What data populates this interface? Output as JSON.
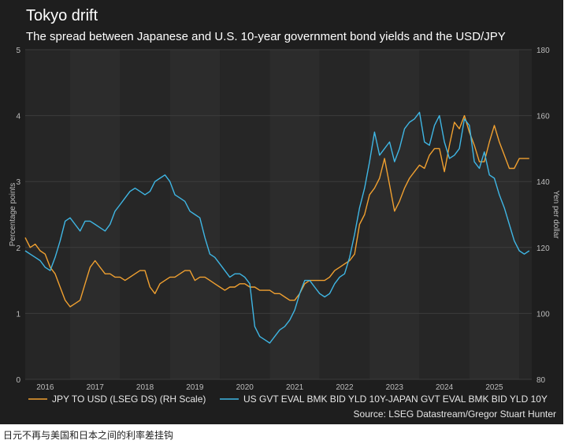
{
  "caption": "日元不再与美国和日本之间的利率差挂钩",
  "chart_data": {
    "type": "line",
    "title": "Tokyo drift",
    "subtitle": "The spread between Japanese and U.S. 10-year government bond yields and the USD/JPY",
    "ylabel_left": "Percentage points",
    "ylabel_right": "Yen per dollar",
    "ylim_left": [
      0,
      5
    ],
    "ylim_right": [
      80,
      180
    ],
    "yticks_left": [
      "0",
      "1",
      "2",
      "3",
      "4",
      "5"
    ],
    "yticks_right": [
      "80",
      "100",
      "120",
      "140",
      "160",
      "180"
    ],
    "xlim": [
      2015.6,
      2025.75
    ],
    "xticks": [
      {
        "label": "2016",
        "x": 2016.0
      },
      {
        "label": "2017",
        "x": 2017.0
      },
      {
        "label": "2018",
        "x": 2018.0
      },
      {
        "label": "2019",
        "x": 2019.0
      },
      {
        "label": "2020",
        "x": 2020.0
      },
      {
        "label": "2021",
        "x": 2021.0
      },
      {
        "label": "2022",
        "x": 2022.0
      },
      {
        "label": "2023",
        "x": 2023.0
      },
      {
        "label": "2024",
        "x": 2024.0
      },
      {
        "label": "2025",
        "x": 2025.0
      }
    ],
    "year_bands": [
      2016.5,
      2017.5,
      2018.5,
      2019.5,
      2020.5,
      2021.5,
      2022.5,
      2023.5,
      2024.5,
      2025.5
    ],
    "series": [
      {
        "name": "JPY TO USD (LSEG DS) (RH Scale)",
        "axis": "right",
        "color": "#f0a030",
        "x": [
          2015.6,
          2015.7,
          2015.8,
          2015.9,
          2016.0,
          2016.1,
          2016.2,
          2016.3,
          2016.4,
          2016.5,
          2016.6,
          2016.7,
          2016.8,
          2016.9,
          2017.0,
          2017.1,
          2017.2,
          2017.3,
          2017.4,
          2017.5,
          2017.6,
          2017.7,
          2017.8,
          2017.9,
          2018.0,
          2018.1,
          2018.2,
          2018.3,
          2018.4,
          2018.5,
          2018.6,
          2018.7,
          2018.8,
          2018.9,
          2019.0,
          2019.1,
          2019.2,
          2019.3,
          2019.4,
          2019.5,
          2019.6,
          2019.7,
          2019.8,
          2019.9,
          2020.0,
          2020.1,
          2020.2,
          2020.3,
          2020.4,
          2020.5,
          2020.6,
          2020.7,
          2020.8,
          2020.9,
          2021.0,
          2021.1,
          2021.2,
          2021.3,
          2021.4,
          2021.5,
          2021.6,
          2021.7,
          2021.8,
          2021.9,
          2022.0,
          2022.1,
          2022.2,
          2022.3,
          2022.4,
          2022.5,
          2022.6,
          2022.7,
          2022.8,
          2022.9,
          2023.0,
          2023.1,
          2023.2,
          2023.3,
          2023.4,
          2023.5,
          2023.6,
          2023.7,
          2023.8,
          2023.9,
          2024.0,
          2024.1,
          2024.2,
          2024.3,
          2024.4,
          2024.5,
          2024.6,
          2024.7,
          2024.8,
          2024.9,
          2025.0,
          2025.1,
          2025.2,
          2025.3,
          2025.4,
          2025.5,
          2025.6,
          2025.7
        ],
        "values": [
          123,
          120,
          121,
          119,
          118,
          114,
          112,
          108,
          104,
          102,
          103,
          104,
          109,
          114,
          116,
          114,
          112,
          112,
          111,
          111,
          110,
          111,
          112,
          113,
          113,
          108,
          106,
          109,
          110,
          111,
          111,
          112,
          113,
          113,
          110,
          111,
          111,
          110,
          109,
          108,
          107,
          108,
          108,
          109,
          109,
          108,
          108,
          107,
          107,
          107,
          106,
          106,
          105,
          104,
          104,
          106,
          109,
          110,
          110,
          110,
          110,
          111,
          113,
          114,
          115,
          116,
          118,
          127,
          130,
          136,
          138,
          141,
          147,
          139,
          131,
          134,
          138,
          141,
          143,
          145,
          144,
          148,
          150,
          150,
          143,
          151,
          158,
          156,
          160,
          155,
          151,
          146,
          146,
          152,
          157,
          152,
          148,
          144,
          144,
          147,
          147,
          147
        ]
      },
      {
        "name": "US GVT EVAL BMK BID YLD 10Y-JAPAN GVT EVAL BMK BID YLD 10Y",
        "axis": "left",
        "color": "#3fb6e4",
        "x": [
          2015.6,
          2015.7,
          2015.8,
          2015.9,
          2016.0,
          2016.1,
          2016.2,
          2016.3,
          2016.4,
          2016.5,
          2016.6,
          2016.7,
          2016.8,
          2016.9,
          2017.0,
          2017.1,
          2017.2,
          2017.3,
          2017.4,
          2017.5,
          2017.6,
          2017.7,
          2017.8,
          2017.9,
          2018.0,
          2018.1,
          2018.2,
          2018.3,
          2018.4,
          2018.5,
          2018.6,
          2018.7,
          2018.8,
          2018.9,
          2019.0,
          2019.1,
          2019.2,
          2019.3,
          2019.4,
          2019.5,
          2019.6,
          2019.7,
          2019.8,
          2019.9,
          2020.0,
          2020.1,
          2020.2,
          2020.3,
          2020.4,
          2020.5,
          2020.6,
          2020.7,
          2020.8,
          2020.9,
          2021.0,
          2021.1,
          2021.2,
          2021.3,
          2021.4,
          2021.5,
          2021.6,
          2021.7,
          2021.8,
          2021.9,
          2022.0,
          2022.1,
          2022.2,
          2022.3,
          2022.4,
          2022.5,
          2022.6,
          2022.7,
          2022.8,
          2022.9,
          2023.0,
          2023.1,
          2023.2,
          2023.3,
          2023.4,
          2023.5,
          2023.6,
          2023.7,
          2023.8,
          2023.9,
          2024.0,
          2024.1,
          2024.2,
          2024.3,
          2024.4,
          2024.5,
          2024.6,
          2024.7,
          2024.8,
          2024.9,
          2025.0,
          2025.1,
          2025.2,
          2025.3,
          2025.4,
          2025.5,
          2025.6,
          2025.7
        ],
        "values": [
          1.95,
          1.9,
          1.85,
          1.8,
          1.7,
          1.65,
          1.85,
          2.1,
          2.4,
          2.45,
          2.35,
          2.25,
          2.4,
          2.4,
          2.35,
          2.3,
          2.25,
          2.35,
          2.55,
          2.65,
          2.75,
          2.85,
          2.9,
          2.85,
          2.8,
          2.85,
          3.0,
          3.05,
          3.1,
          3.0,
          2.8,
          2.75,
          2.7,
          2.55,
          2.5,
          2.45,
          2.15,
          1.9,
          1.85,
          1.75,
          1.65,
          1.55,
          1.6,
          1.6,
          1.55,
          1.45,
          0.8,
          0.65,
          0.6,
          0.55,
          0.65,
          0.75,
          0.8,
          0.9,
          1.05,
          1.3,
          1.5,
          1.5,
          1.4,
          1.3,
          1.25,
          1.3,
          1.45,
          1.55,
          1.6,
          1.85,
          2.2,
          2.6,
          2.9,
          3.3,
          3.75,
          3.4,
          3.5,
          3.6,
          3.3,
          3.5,
          3.8,
          3.9,
          3.95,
          4.05,
          3.6,
          3.55,
          3.85,
          4.0,
          3.6,
          3.35,
          3.4,
          3.5,
          3.95,
          3.85,
          3.3,
          3.2,
          3.45,
          3.1,
          3.05,
          2.8,
          2.6,
          2.35,
          2.1,
          1.95,
          1.9,
          1.95
        ]
      }
    ],
    "legend": [
      {
        "label": "JPY TO USD (LSEG DS) (RH Scale)",
        "color": "#f0a030"
      },
      {
        "label": "US GVT EVAL BMK BID YLD 10Y-JAPAN GVT EVAL BMK BID YLD 10Y",
        "color": "#3fb6e4"
      }
    ],
    "source": "Source: LSEG Datastream/Gregor Stuart Hunter"
  }
}
